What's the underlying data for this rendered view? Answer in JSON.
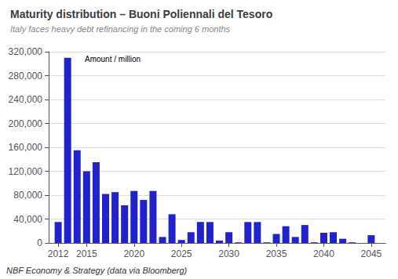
{
  "chart_data": {
    "type": "bar",
    "title": "Maturity distribution – Buoni Poliennali del Tesoro",
    "subtitle": "Italy faces heavy debt refinancing in the coming 6 months",
    "annotation": "Amount / million",
    "footer": "NBF Economy & Strategy (data via Bloomberg)",
    "color": "#2222cc",
    "x": [
      2012,
      2013,
      2014,
      2015,
      2016,
      2017,
      2018,
      2019,
      2020,
      2021,
      2022,
      2023,
      2024,
      2025,
      2026,
      2027,
      2028,
      2029,
      2030,
      2031,
      2032,
      2033,
      2034,
      2035,
      2036,
      2037,
      2038,
      2039,
      2040,
      2041,
      2042,
      2043,
      2044,
      2045
    ],
    "values": [
      35000,
      310000,
      155000,
      120000,
      135000,
      82000,
      85000,
      63000,
      87000,
      72000,
      87000,
      10000,
      48000,
      5000,
      18000,
      35000,
      35000,
      4000,
      18000,
      1000,
      35000,
      35000,
      1000,
      15000,
      28000,
      10000,
      30000,
      1000,
      17000,
      18000,
      7000,
      1000,
      0,
      13000
    ],
    "xlim": [
      2011.0,
      2046.5
    ],
    "xticks": [
      2012,
      2015,
      2020,
      2025,
      2030,
      2035,
      2040,
      2045
    ],
    "ylim": [
      0,
      320000
    ],
    "yticks": [
      0,
      {
        "value": 40000,
        "label": "40,000"
      },
      {
        "value": 80000,
        "label": "80,000"
      },
      {
        "value": 120000,
        "label": "120,000"
      },
      {
        "value": 160000,
        "label": "160,000"
      },
      {
        "value": 200000,
        "label": "200,000"
      },
      {
        "value": 240000,
        "label": "240,000"
      },
      {
        "value": 280000,
        "label": "280,000"
      },
      {
        "value": 320000,
        "label": "320,000"
      }
    ],
    "grid": true
  }
}
